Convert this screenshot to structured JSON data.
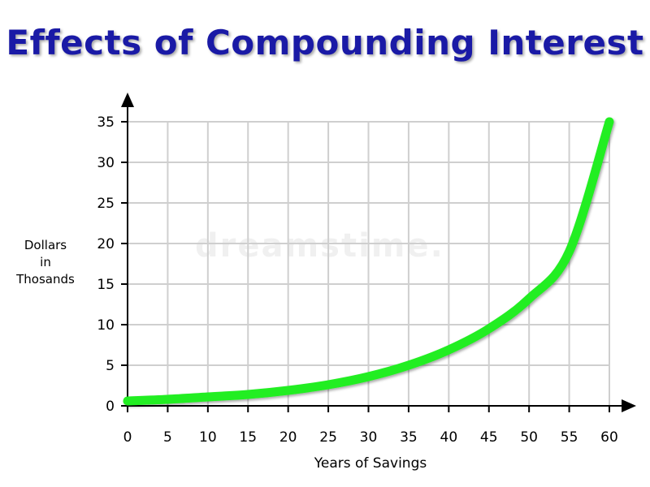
{
  "chart_data": {
    "type": "line",
    "title": "Effects of Compounding Interest",
    "xlabel": "Years of Savings",
    "ylabel_lines": [
      "Dollars",
      "in",
      "Thosands"
    ],
    "x_ticks": [
      "0",
      "5",
      "10",
      "15",
      "20",
      "25",
      "30",
      "35",
      "40",
      "45",
      "50",
      "55",
      "60"
    ],
    "y_ticks": [
      "0",
      "5",
      "10",
      "15",
      "20",
      "25",
      "30",
      "35"
    ],
    "xlim": [
      0,
      60
    ],
    "ylim": [
      0,
      35
    ],
    "grid": true,
    "series": [
      {
        "color": "#22ee22",
        "x": [
          0,
          5,
          10,
          15,
          20,
          25,
          30,
          35,
          40,
          45,
          50,
          55,
          60
        ],
        "y": [
          0.6,
          0.8,
          1.1,
          1.4,
          1.9,
          2.6,
          3.6,
          5.0,
          6.9,
          9.5,
          13.2,
          19.0,
          35.0
        ]
      }
    ]
  },
  "watermark_text": "dreamstime."
}
